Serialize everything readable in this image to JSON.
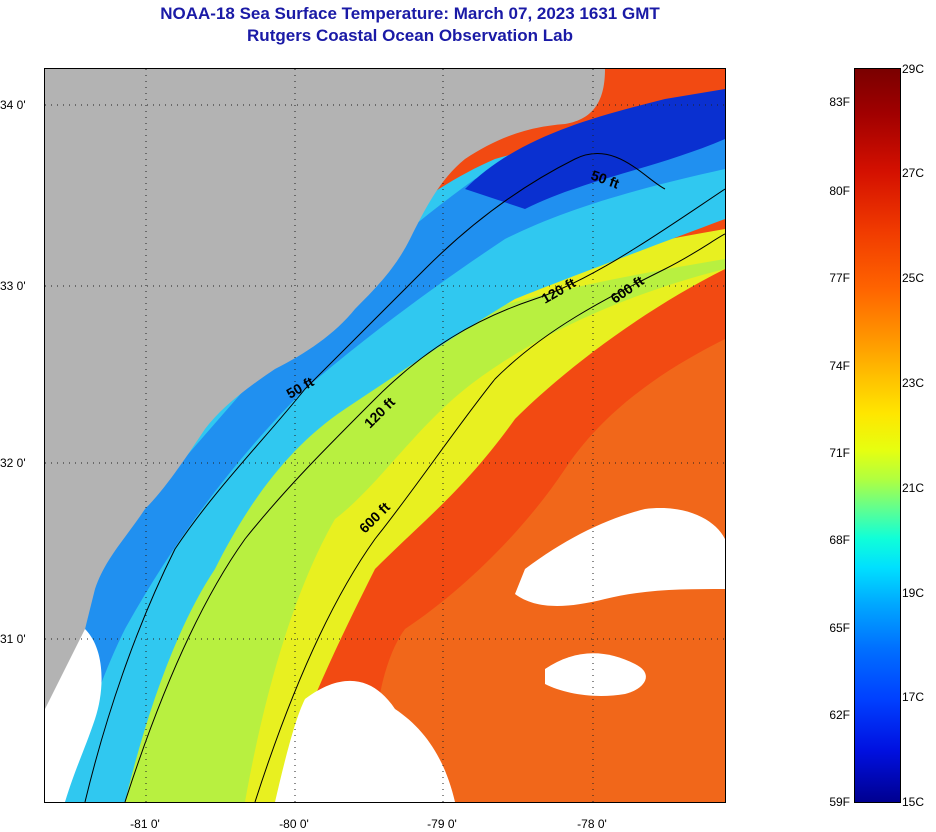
{
  "title": {
    "line1": "NOAA-18 Sea Surface Temperature:  March 07, 2023 1631 GMT",
    "line2": "Rutgers Coastal Ocean Observation Lab"
  },
  "map": {
    "land_color": "#b3b3b3",
    "cloud_color": "#ffffff",
    "contours": [
      "50 ft",
      "120 ft",
      "600 ft"
    ],
    "lat_labels": [
      "34 0'",
      "33 0'",
      "32 0'",
      "31 0'"
    ],
    "lon_labels": [
      "-81 0'",
      "-80 0'",
      "-79 0'",
      "-78 0'"
    ]
  },
  "colorbar": {
    "fahrenheit_labels": [
      "83F",
      "80F",
      "77F",
      "74F",
      "71F",
      "68F",
      "65F",
      "62F",
      "59F"
    ],
    "celsius_labels": [
      "29C",
      "27C",
      "25C",
      "23C",
      "21C",
      "19C",
      "17C",
      "15C"
    ]
  }
}
